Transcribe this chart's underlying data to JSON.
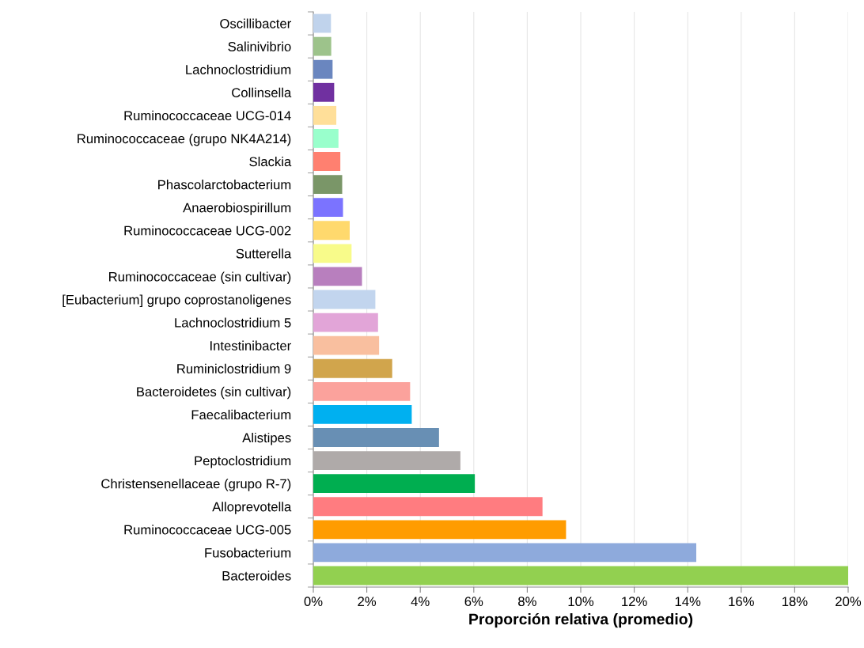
{
  "chart_data": {
    "type": "bar",
    "orientation": "horizontal",
    "xlabel": "Proporción relativa (promedio)",
    "categories": [
      "Oscillibacter",
      "Salinivibrio",
      "Lachnoclostridium",
      "Collinsella",
      "Ruminococcaceae UCG-014",
      "Ruminococcaceae (grupo NK4A214)",
      "Slackia",
      "Phascolarctobacterium",
      "Anaerobiospirillum",
      "Ruminococcaceae UCG-002",
      "Sutterella",
      "Ruminococcaceae (sin cultivar)",
      "[Eubacterium] grupo coprostanoligenes",
      "Lachnoclostridium 5",
      "Intestinibacter",
      "Ruminiclostridium 9",
      "Bacteroidetes (sin cultivar)",
      "Faecalibacterium",
      "Alistipes",
      "Peptoclostridium",
      "Christensenellaceae (grupo R-7)",
      "Alloprevotella",
      "Ruminococcaceae UCG-005",
      "Fusobacterium",
      "Bacteroides"
    ],
    "values": [
      0.66,
      0.67,
      0.72,
      0.78,
      0.86,
      0.94,
      1.01,
      1.08,
      1.11,
      1.36,
      1.43,
      1.82,
      2.32,
      2.42,
      2.46,
      2.95,
      3.62,
      3.68,
      4.7,
      5.5,
      6.04,
      8.57,
      9.45,
      14.32,
      20
    ],
    "colors": [
      "#c0d3ec",
      "#9dc38b",
      "#6a86bf",
      "#7030a0",
      "#ffdf99",
      "#99ffcc",
      "#ff8070",
      "#7a9668",
      "#7b73ff",
      "#ffd96d",
      "#f8fb8a",
      "#b87fbe",
      "#c2d5ee",
      "#e2a5d8",
      "#f9bf9f",
      "#d1a54c",
      "#fba29c",
      "#00b0f0",
      "#688fb4",
      "#afaaa9",
      "#00ae50",
      "#ff7c80",
      "#ff9c00",
      "#8eaadc",
      "#92d050"
    ],
    "xlim": [
      0,
      20
    ],
    "xticks": [
      {
        "value": 0,
        "label": "0%"
      },
      {
        "value": 2,
        "label": "2%"
      },
      {
        "value": 4,
        "label": "4%"
      },
      {
        "value": 6,
        "label": "6%"
      },
      {
        "value": 8,
        "label": "8%"
      },
      {
        "value": 10,
        "label": "10%"
      },
      {
        "value": 12,
        "label": "12%"
      },
      {
        "value": 14,
        "label": "14%"
      },
      {
        "value": 16,
        "label": "16%"
      },
      {
        "value": 18,
        "label": "18%"
      },
      {
        "value": 20,
        "label": "20%"
      }
    ],
    "grid": "x",
    "legend": false
  }
}
